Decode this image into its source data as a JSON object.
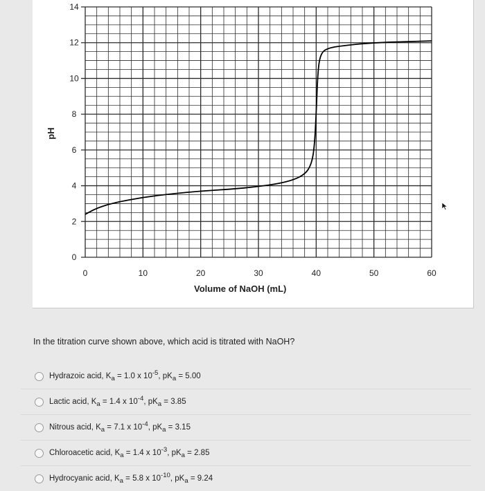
{
  "chart_data": {
    "type": "line",
    "xlabel": "Volume of NaOH (mL)",
    "ylabel": "pH",
    "xlim": [
      0,
      60
    ],
    "ylim": [
      0,
      14
    ],
    "x_ticks": [
      "0",
      "10",
      "20",
      "30",
      "40",
      "50",
      "60"
    ],
    "y_ticks": [
      "0",
      "2",
      "4",
      "6",
      "8",
      "10",
      "12",
      "14"
    ],
    "grid": true,
    "series": [
      {
        "color": "#000000",
        "points": [
          [
            0,
            2.4
          ],
          [
            2,
            2.75
          ],
          [
            5,
            3.05
          ],
          [
            10,
            3.35
          ],
          [
            15,
            3.55
          ],
          [
            20,
            3.7
          ],
          [
            25,
            3.8
          ],
          [
            30,
            3.95
          ],
          [
            35,
            4.2
          ],
          [
            38,
            4.6
          ],
          [
            39.2,
            5.2
          ],
          [
            39.7,
            6.2
          ],
          [
            40,
            8.0
          ],
          [
            40.3,
            10.5
          ],
          [
            40.8,
            11.4
          ],
          [
            42,
            11.7
          ],
          [
            45,
            11.85
          ],
          [
            50,
            12.0
          ],
          [
            55,
            12.05
          ],
          [
            60,
            12.1
          ]
        ]
      }
    ]
  },
  "question": {
    "text": "In the titration curve shown above, which acid is titrated with NaOH?"
  },
  "options": [
    {
      "name": "Hydrazoic acid",
      "ka_mantissa": "1.0",
      "ka_exp": "-5",
      "pka": "5.00"
    },
    {
      "name": "Lactic acid",
      "ka_mantissa": "1.4",
      "ka_exp": "-4",
      "pka": "3.85"
    },
    {
      "name": "Nitrous acid",
      "ka_mantissa": "7.1",
      "ka_exp": "-4",
      "pka": "3.15"
    },
    {
      "name": "Chloroacetic acid",
      "ka_mantissa": "1.4",
      "ka_exp": "-3",
      "pka": "2.85"
    },
    {
      "name": "Hydrocyanic acid",
      "ka_mantissa": "5.8",
      "ka_exp": "-10",
      "pka": "9.24"
    }
  ],
  "colors": {
    "curve": "#000000",
    "grid": "#2a2a2a",
    "card": "#ffffff",
    "background": "#e9e9ea"
  }
}
